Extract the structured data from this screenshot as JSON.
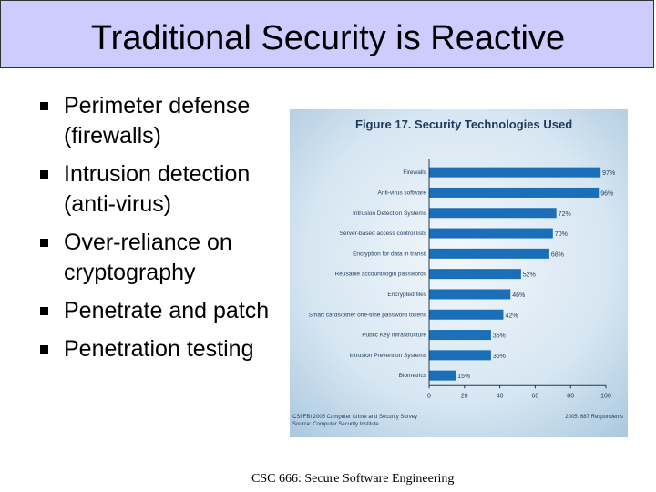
{
  "slide": {
    "title": "Traditional Security is Reactive",
    "bullets": [
      "Perimeter defense (firewalls)",
      "Intrusion detection (anti-virus)",
      "Over-reliance on cryptography",
      "Penetrate and patch",
      "Penetration testing"
    ],
    "footer": "CSC 666: Secure Software Engineering"
  },
  "colors": {
    "title_bar": "#ccccff",
    "bar": "#1a6fb8",
    "chart_background": "#d6e6f2"
  },
  "chart_data": {
    "type": "bar",
    "orientation": "horizontal",
    "title": "Figure 17. Security Technologies Used",
    "categories": [
      "Firewalls",
      "Anti-virus software",
      "Intrusion Detection Systems",
      "Server-based access control lists",
      "Encryption for data in transit",
      "Reusable account/login passwords",
      "Encrypted files",
      "Smart cards/other one-time password tokens",
      "Public Key Infrastructure",
      "Intrusion Prevention Systems",
      "Biometrics"
    ],
    "values": [
      97,
      96,
      72,
      70,
      68,
      52,
      46,
      42,
      35,
      35,
      15
    ],
    "value_labels": [
      "97%",
      "96%",
      "72%",
      "70%",
      "68%",
      "52%",
      "46%",
      "42%",
      "35%",
      "35%",
      "15%"
    ],
    "xlim": [
      0,
      100
    ],
    "x_ticks": [
      0,
      20,
      40,
      60,
      80,
      100
    ],
    "source_left": "CSI/FBI 2005 Computer Crime and Security Survey\nSource: Computer Security Institute",
    "source_right": "2005: 687 Respondents"
  }
}
